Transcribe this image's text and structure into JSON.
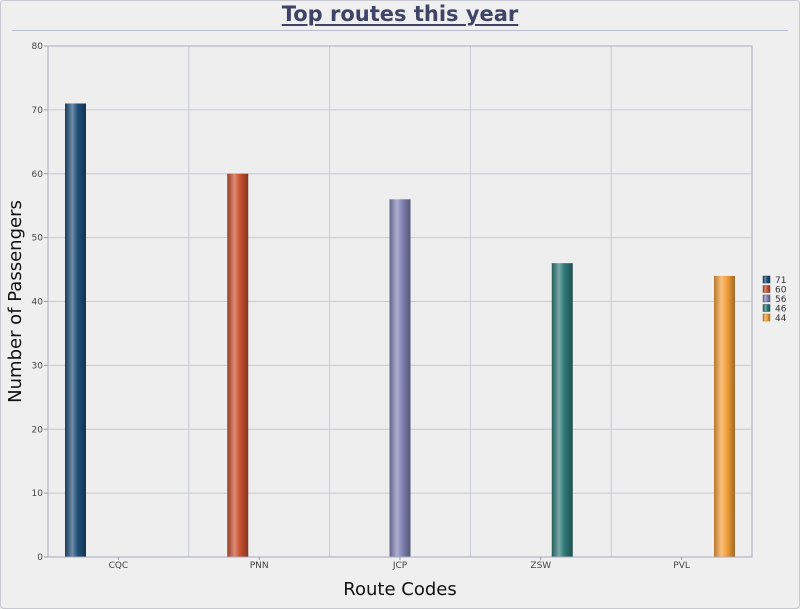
{
  "chart_data": {
    "type": "bar",
    "title": "Top routes this year",
    "xlabel": "Route Codes",
    "ylabel": "Number of Passengers",
    "categories": [
      "CQC",
      "PNN",
      "JCP",
      "ZSW",
      "PVL"
    ],
    "values": [
      71,
      60,
      56,
      46,
      44
    ],
    "colors": [
      "#1f4e79",
      "#c9502e",
      "#8284b5",
      "#2e7a78",
      "#f5a03a"
    ],
    "ylim": [
      0,
      80
    ],
    "yticks": [
      0,
      10,
      20,
      30,
      40,
      50,
      60,
      70,
      80
    ],
    "grid": true,
    "legend": {
      "position": "right",
      "entries": [
        "71",
        "60",
        "56",
        "46",
        "44"
      ]
    }
  }
}
